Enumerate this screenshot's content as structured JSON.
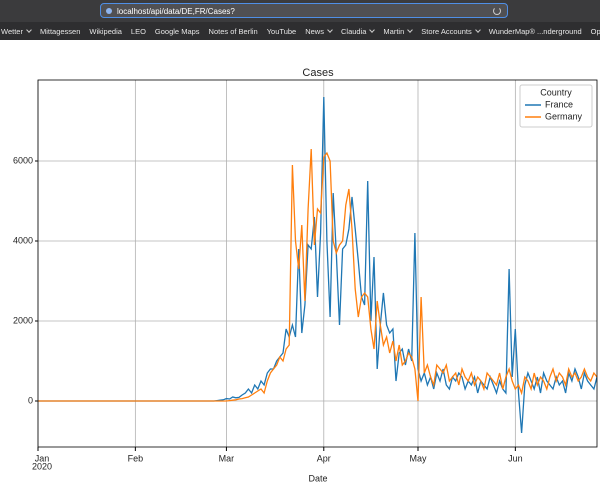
{
  "browser": {
    "url": "localhost/api/data/DE,FR/Cases?",
    "bookmarks": [
      {
        "label": "Wetter",
        "folder": true
      },
      {
        "label": "Mittagessen",
        "folder": false
      },
      {
        "label": "Wikipedia",
        "folder": false
      },
      {
        "label": "LEO",
        "folder": false
      },
      {
        "label": "Google Maps",
        "folder": false
      },
      {
        "label": "Notes of Berlin",
        "folder": false
      },
      {
        "label": "YouTube",
        "folder": false
      },
      {
        "label": "News",
        "folder": true
      },
      {
        "label": "Claudia",
        "folder": true
      },
      {
        "label": "Martin",
        "folder": true
      },
      {
        "label": "Store Accounts",
        "folder": true
      },
      {
        "label": "WunderMap® ...nderground",
        "folder": false
      },
      {
        "label": "Operating sys",
        "folder": false
      }
    ]
  },
  "chart_data": {
    "type": "line",
    "title": "Cases",
    "x_label": "Date",
    "x_year_label": "2020",
    "legend_title": "Country",
    "legend": "upper right",
    "grid": true,
    "xlim": [
      0,
      178
    ],
    "xticks": [
      {
        "value": 0,
        "label": "Jan"
      },
      {
        "value": 31,
        "label": "Feb"
      },
      {
        "value": 60,
        "label": "Mar"
      },
      {
        "value": 91,
        "label": "Apr"
      },
      {
        "value": 121,
        "label": "May"
      },
      {
        "value": 152,
        "label": "Jun"
      }
    ],
    "ylim": [
      -1150,
      8025
    ],
    "yticks": [
      0,
      2000,
      4000,
      6000
    ],
    "x": [
      0,
      55,
      56,
      57,
      58,
      59,
      60,
      61,
      62,
      63,
      64,
      65,
      66,
      67,
      68,
      69,
      70,
      71,
      72,
      73,
      74,
      75,
      76,
      77,
      78,
      79,
      80,
      81,
      82,
      83,
      84,
      85,
      86,
      87,
      88,
      89,
      90,
      91,
      92,
      93,
      94,
      95,
      96,
      97,
      98,
      99,
      100,
      101,
      102,
      103,
      104,
      105,
      106,
      107,
      108,
      109,
      110,
      111,
      112,
      113,
      114,
      115,
      116,
      117,
      118,
      119,
      120,
      121,
      122,
      123,
      124,
      125,
      126,
      127,
      128,
      129,
      130,
      131,
      132,
      133,
      134,
      135,
      136,
      137,
      138,
      139,
      140,
      141,
      142,
      143,
      144,
      145,
      146,
      147,
      148,
      149,
      150,
      151,
      152,
      153,
      154,
      155,
      156,
      157,
      158,
      159,
      160,
      161,
      162,
      163,
      164,
      165,
      166,
      167,
      168,
      169,
      170,
      171,
      172,
      173,
      174,
      175,
      176,
      177,
      178
    ],
    "series": [
      {
        "name": "France",
        "color": "#1f77b4",
        "values": [
          0,
          0,
          0,
          10,
          20,
          30,
          60,
          50,
          100,
          80,
          90,
          150,
          200,
          300,
          200,
          400,
          300,
          500,
          400,
          700,
          800,
          800,
          1000,
          1100,
          1200,
          1800,
          1600,
          1900,
          1600,
          3800,
          1700,
          2400,
          3900,
          3800,
          4600,
          2600,
          4200,
          7600,
          4000,
          2100,
          5200,
          3700,
          1900,
          3800,
          3900,
          4300,
          5100,
          4300,
          3500,
          2600,
          2400,
          5500,
          2000,
          3600,
          800,
          1900,
          2700,
          1900,
          1700,
          1800,
          500,
          1200,
          1300,
          900,
          1300,
          1000,
          4200,
          800,
          500,
          700,
          400,
          600,
          300,
          700,
          500,
          800,
          400,
          300,
          600,
          500,
          700,
          600,
          300,
          500,
          400,
          600,
          200,
          500,
          400,
          300,
          600,
          400,
          200,
          500,
          300,
          200,
          3300,
          600,
          1800,
          200,
          -800,
          400,
          700,
          500,
          300,
          600,
          200,
          700,
          500,
          400,
          300,
          600,
          400,
          500,
          200,
          700,
          500,
          800,
          600,
          300,
          700,
          500,
          400,
          300,
          600
        ]
      },
      {
        "name": "Germany",
        "color": "#ff7f0e",
        "values": [
          0,
          0,
          0,
          0,
          0,
          0,
          0,
          10,
          20,
          30,
          50,
          60,
          80,
          100,
          150,
          200,
          250,
          300,
          200,
          500,
          700,
          800,
          900,
          1100,
          1000,
          1300,
          1400,
          5900,
          4000,
          3300,
          4400,
          2500,
          4800,
          6300,
          3900,
          4800,
          4700,
          6100,
          6200,
          6000,
          4000,
          3700,
          3900,
          4000,
          4900,
          5300,
          4300,
          2800,
          2100,
          2600,
          2700,
          2600,
          1800,
          1300,
          2500,
          1900,
          1400,
          1600,
          1200,
          1500,
          1000,
          1400,
          900,
          1000,
          1200,
          1100,
          800,
          0,
          2600,
          700,
          900,
          600,
          400,
          900,
          800,
          700,
          900,
          500,
          600,
          700,
          400,
          800,
          600,
          500,
          700,
          400,
          600,
          500,
          300,
          700,
          600,
          500,
          400,
          700,
          300,
          600,
          800,
          500,
          300,
          400,
          200,
          600,
          500,
          300,
          700,
          400,
          600,
          500,
          300,
          600,
          800,
          500,
          700,
          600,
          400,
          800,
          600,
          700,
          500,
          600,
          800,
          600,
          500,
          700,
          600
        ]
      }
    ]
  }
}
